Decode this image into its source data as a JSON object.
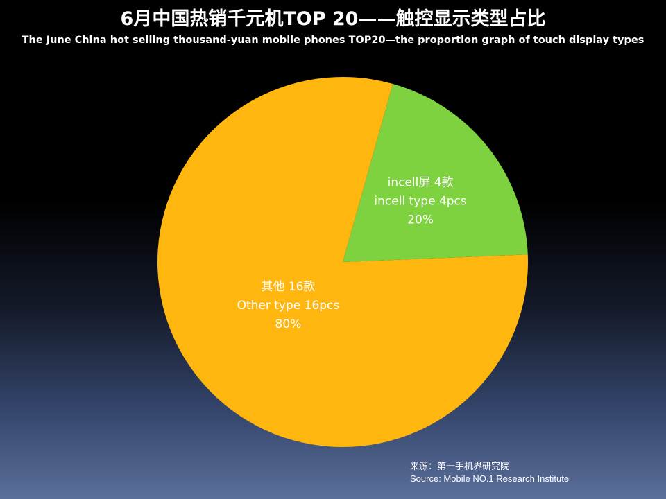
{
  "chart_data": {
    "type": "pie",
    "title": "6月中国热销千元机TOP 20——触控显示类型占比",
    "subtitle": "The June  China hot selling thousand-yuan mobile phones TOP20—the proportion graph of touch display types",
    "slices": [
      {
        "value": 4,
        "percent": 20,
        "color": "#7ed13f",
        "label_lines": [
          "incell屏 4款",
          "incell type 4pcs",
          "20%"
        ]
      },
      {
        "value": 16,
        "percent": 80,
        "color": "#ffb60f",
        "label_lines": [
          "其他 16款",
          "Other type 16pcs",
          "80%"
        ]
      }
    ],
    "legend": "none"
  },
  "source": {
    "line_cn": "来源：第一手机界研究院",
    "line_en": "Source: Mobile NO.1 Research Institute"
  }
}
